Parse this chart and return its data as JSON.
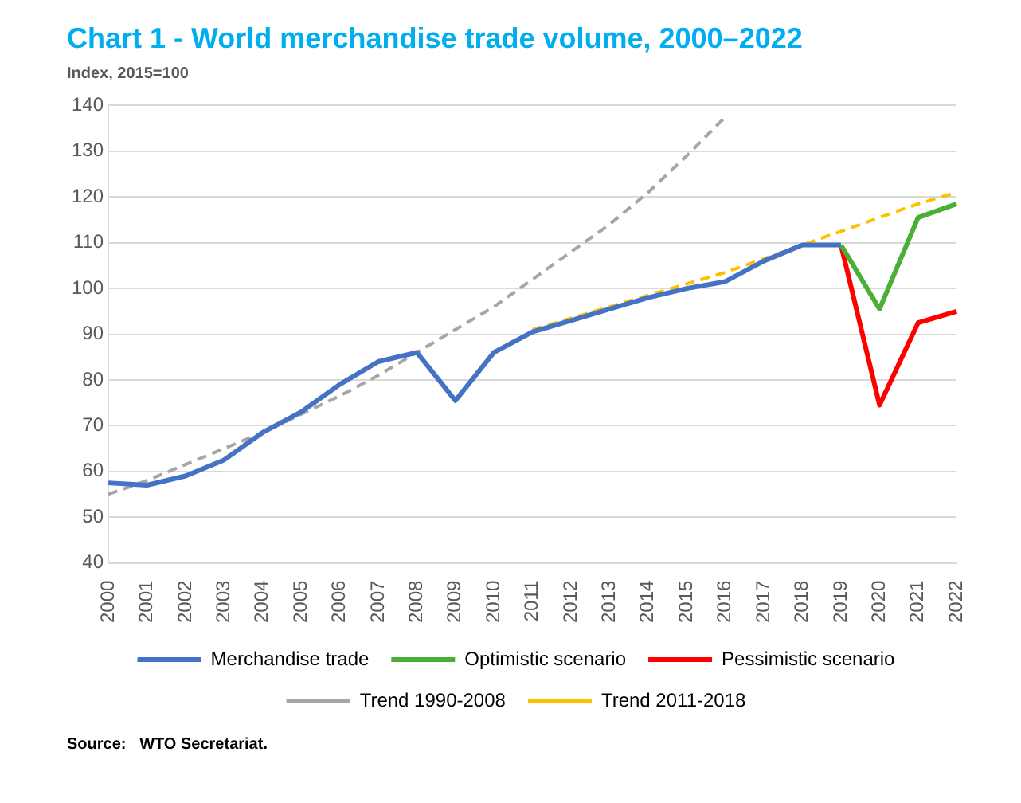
{
  "chart_data": {
    "type": "line",
    "title": "Chart 1 - World merchandise trade volume, 2000–2022",
    "subtitle": "Index, 2015=100",
    "categories": [
      "2000",
      "2001",
      "2002",
      "2003",
      "2004",
      "2005",
      "2006",
      "2007",
      "2008",
      "2009",
      "2010",
      "2011",
      "2012",
      "2013",
      "2014",
      "2015",
      "2016",
      "2017",
      "2018",
      "2019",
      "2020",
      "2021",
      "2022"
    ],
    "series": [
      {
        "name": "Merchandise trade",
        "color": "#4472c4",
        "line_style": "solid",
        "values": [
          57.5,
          57,
          59,
          62.5,
          68.5,
          73,
          79,
          84,
          86,
          75.5,
          86,
          90.5,
          93,
          95.5,
          98,
          100,
          101.5,
          106,
          109.5,
          109.5,
          null,
          null,
          null
        ]
      },
      {
        "name": "Optimistic scenario",
        "color": "#4caf35",
        "line_style": "solid",
        "values": [
          null,
          null,
          null,
          null,
          null,
          null,
          null,
          null,
          null,
          null,
          null,
          null,
          null,
          null,
          null,
          null,
          null,
          null,
          null,
          109.5,
          95.5,
          115.5,
          118.5
        ]
      },
      {
        "name": "Pessimistic scenario",
        "color": "#ff0000",
        "line_style": "solid",
        "values": [
          null,
          null,
          null,
          null,
          null,
          null,
          null,
          null,
          null,
          null,
          null,
          null,
          null,
          null,
          null,
          null,
          null,
          null,
          null,
          109.5,
          74.5,
          92.5,
          95
        ]
      },
      {
        "name": "Trend 1990-2008",
        "color": "#a6a6a6",
        "line_style": "dashed",
        "values": [
          55,
          58,
          61.5,
          65,
          68.5,
          72.5,
          76.5,
          81,
          86,
          91,
          96,
          102,
          108,
          114,
          121,
          129,
          137.5,
          null,
          null,
          null,
          null,
          null,
          null
        ]
      },
      {
        "name": "Trend 2011-2018",
        "color": "#ffc000",
        "line_style": "dashed",
        "values": [
          null,
          null,
          null,
          null,
          null,
          null,
          null,
          null,
          null,
          null,
          null,
          91,
          93.5,
          96,
          98.5,
          101,
          103.5,
          106.5,
          109.5,
          112.5,
          115.5,
          118.5,
          121
        ]
      }
    ],
    "ylim": [
      40,
      140
    ],
    "yticks": [
      40,
      50,
      60,
      70,
      80,
      90,
      100,
      110,
      120,
      130,
      140
    ],
    "grid": "y",
    "legend": "bottom",
    "marker": "none",
    "annotations": [
      "Source:   WTO Secretariat."
    ]
  }
}
